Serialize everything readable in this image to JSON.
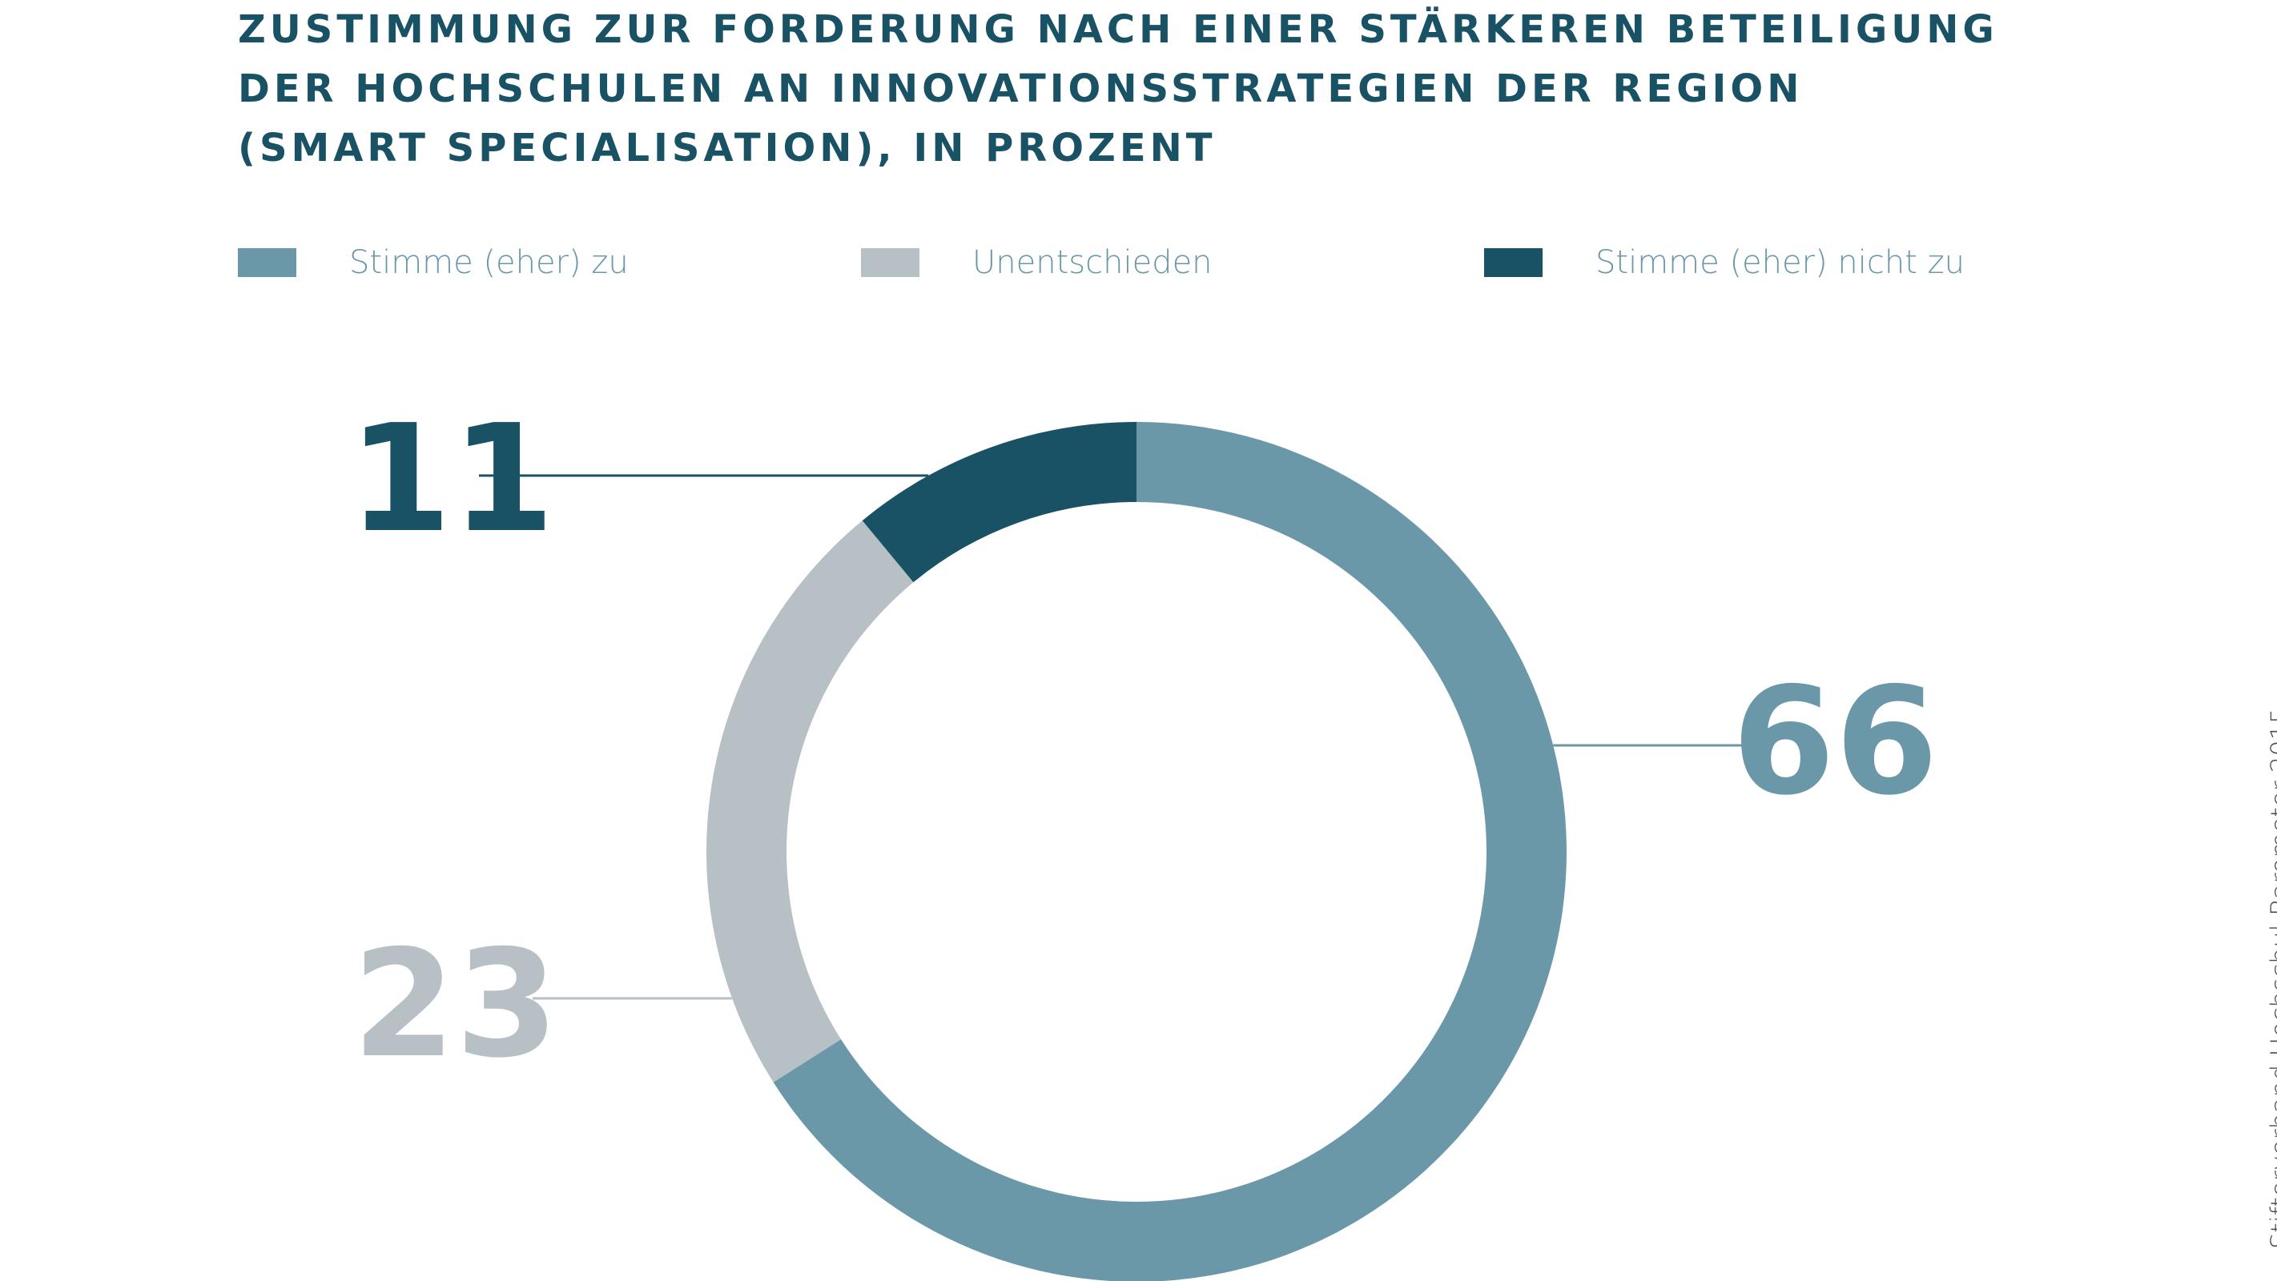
{
  "title_lines": [
    "ZUSTIMMUNG ZUR FORDERUNG NACH EINER STÄRKEREN BETEILIGUNG",
    "DER HOCHSCHULEN AN INNOVATIONSSTRATEGIEN DER REGION",
    "(SMART SPECIALISATION), IN PROZENT"
  ],
  "source": "Stifterverband Hochschul-Barometer 2015",
  "chart_data": {
    "type": "pie",
    "variant": "donut",
    "title": "ZUSTIMMUNG ZUR FORDERUNG NACH EINER STÄRKEREN BETEILIGUNG DER HOCHSCHULEN AN INNOVATIONSSTRATEGIEN DER REGION (SMART SPECIALISATION), IN PROZENT",
    "unit": "Prozent",
    "legend_position": "top",
    "slices": [
      {
        "label": "Stimme (eher) zu",
        "value": 66,
        "color": "#6a98a8"
      },
      {
        "label": "Unentschieden",
        "value": 23,
        "color": "#b7c0c5"
      },
      {
        "label": "Stimme (eher) nicht zu",
        "value": 11,
        "color": "#1a5265"
      }
    ]
  }
}
